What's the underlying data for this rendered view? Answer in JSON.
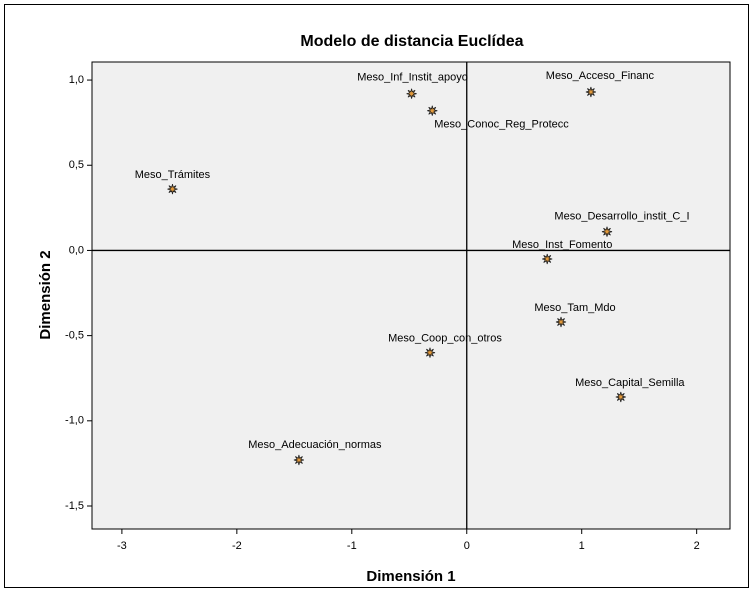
{
  "chart_data": {
    "type": "scatter",
    "title": "Modelo de distancia Euclídea",
    "xlabel": "Dimensión 1",
    "ylabel": "Dimensión 2",
    "point_labels": [
      "Meso_Inf_Instit_apoyo",
      "Meso_Conoc_Reg_Protecc",
      "Meso_Acceso_Financ",
      "Meso_Trámites",
      "Meso_Desarrollo_instit_C_I",
      "Meso_Inst_Fomento",
      "Meso_Tam_Mdo",
      "Meso_Coop_con_otros",
      "Meso_Capital_Semilla",
      "Meso_Adecuación_normas"
    ],
    "x": [
      -0.48,
      -0.3,
      1.08,
      -2.56,
      1.22,
      0.7,
      0.82,
      -0.32,
      1.34,
      -1.46
    ],
    "values": [
      0.92,
      0.82,
      0.93,
      0.36,
      0.11,
      -0.05,
      -0.42,
      -0.6,
      -0.86,
      -1.23
    ],
    "color": "#e39a3b",
    "xlim": [
      -3.26,
      2.29
    ],
    "ylim": [
      -1.635,
      1.106
    ],
    "xticks": [
      -3,
      -2,
      -1,
      0,
      1,
      2
    ],
    "yticks": [
      {
        "value": 1.0,
        "label": "1,0"
      },
      {
        "value": 0.5,
        "label": "0,5"
      },
      {
        "value": 0.0,
        "label": "0,0"
      },
      {
        "value": -0.5,
        "label": "-0,5"
      },
      {
        "value": -1.0,
        "label": "-1,0"
      },
      {
        "value": -1.5,
        "label": "-1,5"
      }
    ],
    "x_reference": 0,
    "y_reference": 0
  }
}
